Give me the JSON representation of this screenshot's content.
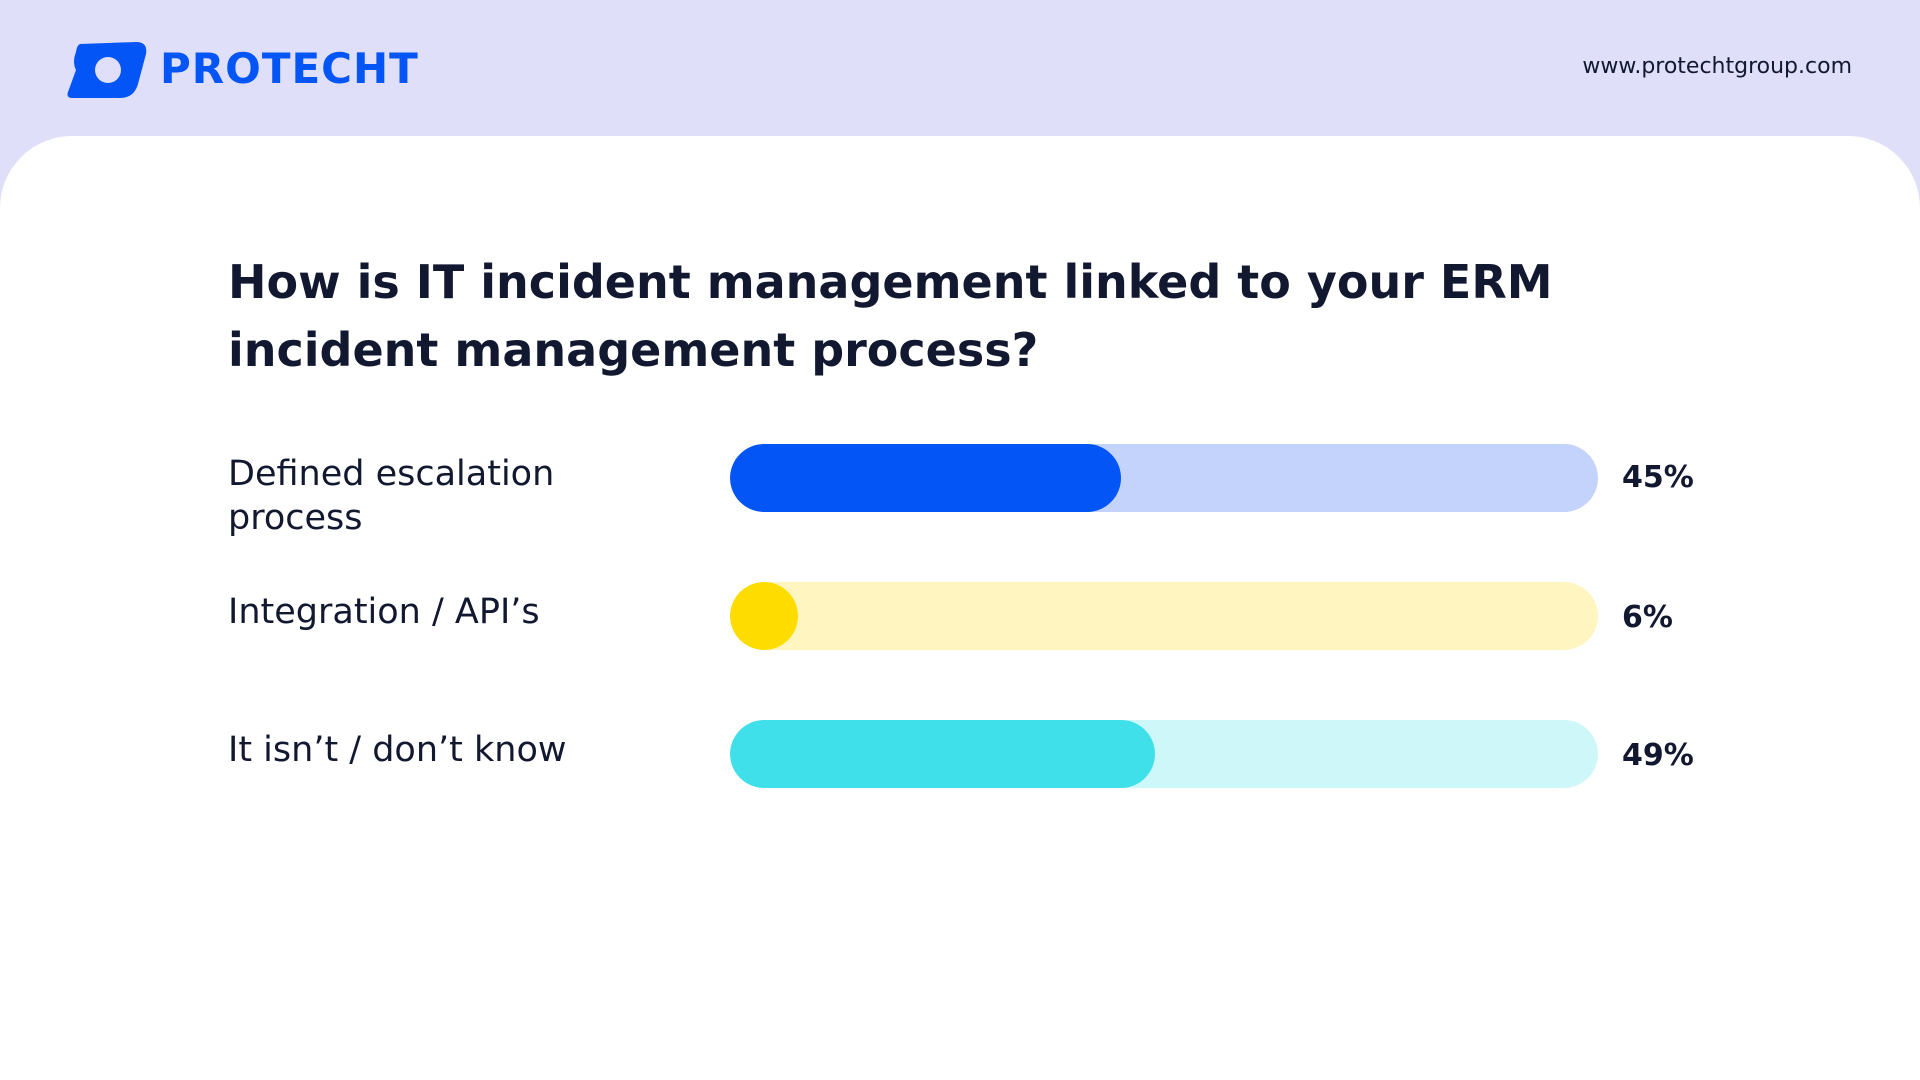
{
  "brand": {
    "name": "PROTECHT",
    "website": "www.protechtgroup.com",
    "color": "#0455f5"
  },
  "chart_data": {
    "type": "bar",
    "orientation": "horizontal",
    "title": "How is IT incident management linked to your ERM incident management process?",
    "categories": [
      "Defined escalation process",
      "Integration / API’s",
      "It isn’t / don’t know"
    ],
    "values": [
      45,
      6,
      49
    ],
    "value_labels": [
      "45%",
      "6%",
      "49%"
    ],
    "unit": "%",
    "xlim": [
      0,
      100
    ],
    "grid": false,
    "legend": "none",
    "colors": [
      {
        "fill": "#0455f5",
        "track": "#c3d3fb"
      },
      {
        "fill": "#ffdc00",
        "track": "#fff5c1"
      },
      {
        "fill": "#40e0eb",
        "track": "#cdf7f9"
      }
    ]
  }
}
